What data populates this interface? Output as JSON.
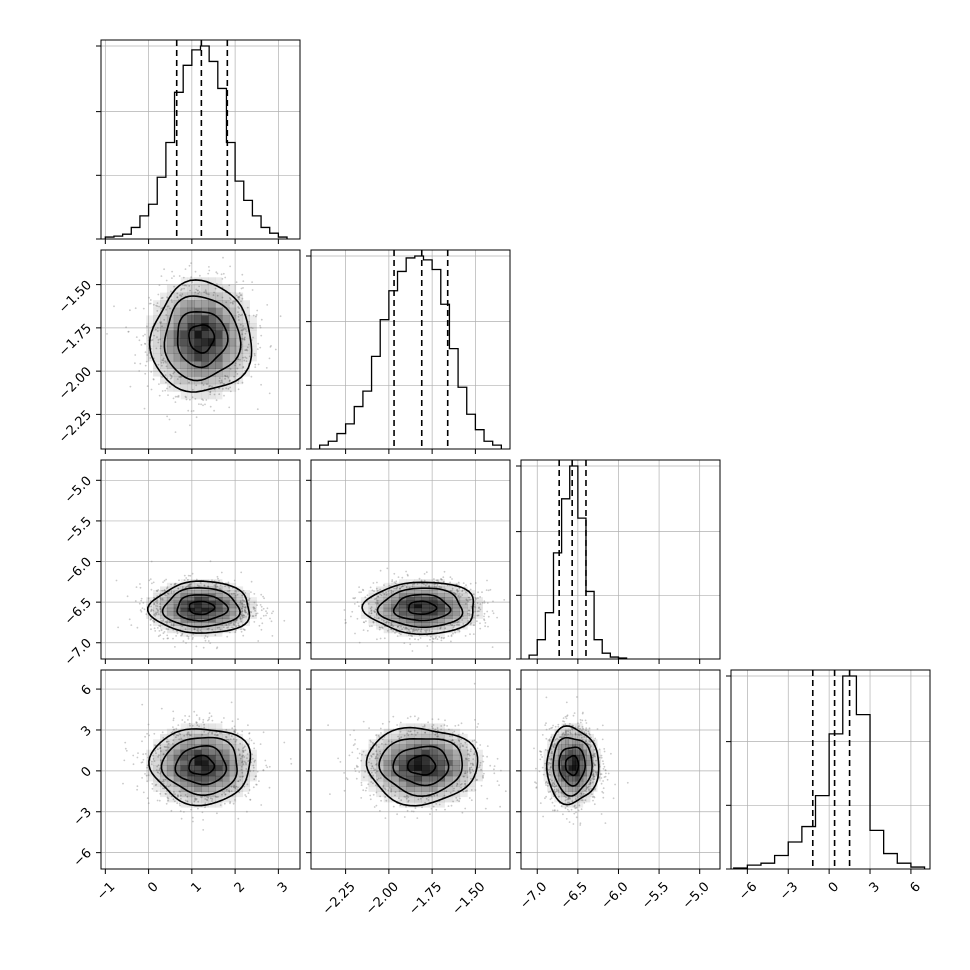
{
  "chart_data": {
    "type": "corner",
    "grid": true,
    "colors": {
      "line": "#000000",
      "grid": "#b0b0b0",
      "scatter": "#8a8a8a",
      "density": "#000000"
    },
    "parameters": [
      {
        "ticks": [
          -1,
          0,
          1,
          2,
          3
        ],
        "tick_labels": [
          "−1",
          "0",
          "1",
          "2",
          "3"
        ],
        "range": [
          -1.1,
          3.5
        ]
      },
      {
        "ticks": [
          -2.25,
          -2.0,
          -1.75,
          -1.5
        ],
        "tick_labels": [
          "−2.25",
          "−2.00",
          "−1.75",
          "−1.50"
        ],
        "range": [
          -2.45,
          -1.3
        ]
      },
      {
        "ticks": [
          -7.0,
          -6.5,
          -6.0,
          -5.5,
          -5.0
        ],
        "tick_labels": [
          "−7.0",
          "−6.5",
          "−6.0",
          "−5.5",
          "−5.0"
        ],
        "range": [
          -7.2,
          -4.75
        ]
      },
      {
        "ticks": [
          -6,
          -3,
          0,
          3,
          6
        ],
        "tick_labels": [
          "−6",
          "−3",
          "0",
          "3",
          "6"
        ],
        "range": [
          -7.2,
          7.4
        ]
      }
    ],
    "histograms": [
      {
        "bin_edges": [
          -1.0,
          -0.8,
          -0.6,
          -0.4,
          -0.2,
          0.0,
          0.2,
          0.4,
          0.6,
          0.8,
          1.0,
          1.2,
          1.4,
          1.6,
          1.8,
          2.0,
          2.2,
          2.4,
          2.6,
          2.8,
          3.0,
          3.2
        ],
        "counts": [
          0.01,
          0.015,
          0.025,
          0.06,
          0.12,
          0.18,
          0.32,
          0.5,
          0.76,
          0.9,
          0.98,
          1.0,
          0.92,
          0.78,
          0.5,
          0.3,
          0.2,
          0.12,
          0.06,
          0.03,
          0.01
        ],
        "quantiles": [
          0.65,
          1.22,
          1.82
        ]
      },
      {
        "bin_edges": [
          -2.4,
          -2.35,
          -2.3,
          -2.25,
          -2.2,
          -2.15,
          -2.1,
          -2.05,
          -2.0,
          -1.95,
          -1.9,
          -1.85,
          -1.8,
          -1.75,
          -1.7,
          -1.65,
          -1.6,
          -1.55,
          -1.5,
          -1.45,
          -1.4,
          -1.35
        ],
        "counts": [
          0.02,
          0.04,
          0.08,
          0.13,
          0.22,
          0.3,
          0.48,
          0.67,
          0.82,
          0.92,
          0.99,
          1.0,
          0.98,
          0.93,
          0.75,
          0.52,
          0.32,
          0.18,
          0.1,
          0.04,
          0.02
        ],
        "quantiles": [
          -1.97,
          -1.81,
          -1.66
        ]
      },
      {
        "bin_edges": [
          -7.1,
          -7.0,
          -6.9,
          -6.8,
          -6.7,
          -6.6,
          -6.5,
          -6.4,
          -6.3,
          -6.2,
          -6.1,
          -6.0,
          -5.9
        ],
        "counts": [
          0.02,
          0.1,
          0.24,
          0.55,
          0.83,
          1.0,
          0.73,
          0.35,
          0.1,
          0.03,
          0.01,
          0.005
        ],
        "quantiles": [
          -6.73,
          -6.57,
          -6.4
        ]
      },
      {
        "bin_edges": [
          -7,
          -6,
          -5,
          -4,
          -3,
          -2,
          -1,
          0,
          1,
          2,
          3,
          4,
          5,
          6,
          7
        ],
        "counts": [
          0.005,
          0.02,
          0.03,
          0.07,
          0.14,
          0.22,
          0.38,
          0.7,
          1.0,
          0.8,
          0.2,
          0.08,
          0.03,
          0.01
        ],
        "quantiles": [
          -1.2,
          0.4,
          1.5
        ]
      }
    ],
    "pairs": [
      {
        "row": 1,
        "col": 0,
        "mean": [
          1.22,
          -1.81
        ],
        "std": [
          0.58,
          0.16
        ],
        "corr": 0.0
      },
      {
        "row": 2,
        "col": 0,
        "mean": [
          1.22,
          -6.57
        ],
        "std": [
          0.58,
          0.16
        ],
        "corr": 0.0
      },
      {
        "row": 2,
        "col": 1,
        "mean": [
          -1.81,
          -6.57
        ],
        "std": [
          0.16,
          0.16
        ],
        "corr": 0.0
      },
      {
        "row": 3,
        "col": 0,
        "mean": [
          1.22,
          0.4
        ],
        "std": [
          0.58,
          1.4
        ],
        "corr": 0.0
      },
      {
        "row": 3,
        "col": 1,
        "mean": [
          -1.81,
          0.4
        ],
        "std": [
          0.16,
          1.4
        ],
        "corr": 0.0
      },
      {
        "row": 3,
        "col": 2,
        "mean": [
          -6.57,
          0.4
        ],
        "std": [
          0.16,
          1.4
        ],
        "corr": 0.0
      }
    ],
    "contour_levels_sigma": [
      0.5,
      1.0,
      1.5,
      2.0
    ]
  }
}
